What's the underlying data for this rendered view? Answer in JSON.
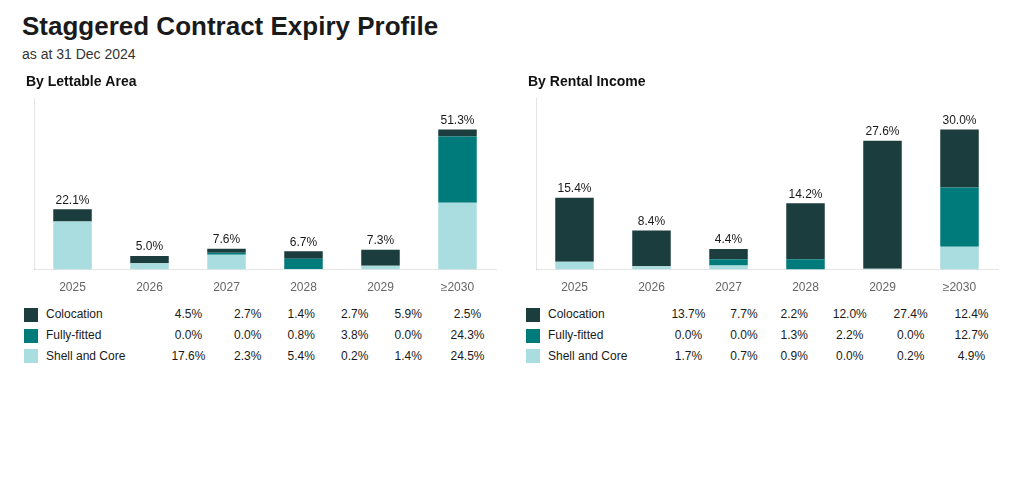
{
  "title": "Staggered Contract Expiry Profile",
  "subtitle": "as at 31 Dec 2024",
  "chart_data": [
    {
      "type": "bar",
      "title": "By Lettable Area",
      "categories": [
        "2025",
        "2026",
        "2027",
        "2028",
        "2029",
        "≥2030"
      ],
      "series": [
        {
          "name": "Colocation",
          "color": "#1c3d3d",
          "values": [
            4.5,
            2.7,
            1.4,
            2.7,
            5.9,
            2.5
          ],
          "value_labels": [
            "4.5%",
            "2.7%",
            "1.4%",
            "2.7%",
            "5.9%",
            "2.5%"
          ]
        },
        {
          "name": "Fully-fitted",
          "color": "#007b7b",
          "values": [
            0.0,
            0.0,
            0.8,
            3.8,
            0.0,
            24.3
          ],
          "value_labels": [
            "0.0%",
            "0.0%",
            "0.8%",
            "3.8%",
            "0.0%",
            "24.3%"
          ]
        },
        {
          "name": "Shell and Core",
          "color": "#aadde0",
          "values": [
            17.6,
            2.3,
            5.4,
            0.2,
            1.4,
            24.5
          ],
          "value_labels": [
            "17.6%",
            "2.3%",
            "5.4%",
            "0.2%",
            "1.4%",
            "24.5%"
          ]
        }
      ],
      "totals": [
        22.1,
        5.0,
        7.6,
        6.7,
        7.3,
        51.3
      ],
      "total_labels": [
        "22.1%",
        "5.0%",
        "7.6%",
        "6.7%",
        "7.3%",
        "51.3%"
      ],
      "stacked": true,
      "ylim": [
        0,
        62.586
      ],
      "yticks": [],
      "tick_labels": "x",
      "grid": false
    },
    {
      "type": "bar",
      "title": "By Rental Income",
      "categories": [
        "2025",
        "2026",
        "2027",
        "2028",
        "2029",
        "≥2030"
      ],
      "series": [
        {
          "name": "Colocation",
          "color": "#1c3d3d",
          "values": [
            13.7,
            7.7,
            2.2,
            12.0,
            27.4,
            12.4
          ],
          "value_labels": [
            "13.7%",
            "7.7%",
            "2.2%",
            "12.0%",
            "27.4%",
            "12.4%"
          ]
        },
        {
          "name": "Fully-fitted",
          "color": "#007b7b",
          "values": [
            0.0,
            0.0,
            1.3,
            2.2,
            0.0,
            12.7
          ],
          "value_labels": [
            "0.0%",
            "0.0%",
            "1.3%",
            "2.2%",
            "0.0%",
            "12.7%"
          ]
        },
        {
          "name": "Shell and Core",
          "color": "#aadde0",
          "values": [
            1.7,
            0.7,
            0.9,
            0.0,
            0.2,
            4.9
          ],
          "value_labels": [
            "1.7%",
            "0.7%",
            "0.9%",
            "0.0%",
            "0.2%",
            "4.9%"
          ]
        }
      ],
      "totals": [
        15.4,
        8.4,
        4.4,
        14.2,
        27.6,
        30.0
      ],
      "total_labels": [
        "15.4%",
        "8.4%",
        "4.4%",
        "14.2%",
        "27.6%",
        "30.0%"
      ],
      "stacked": true,
      "ylim": [
        0,
        36.6
      ],
      "yticks": [],
      "tick_labels": "x",
      "grid": false
    }
  ]
}
